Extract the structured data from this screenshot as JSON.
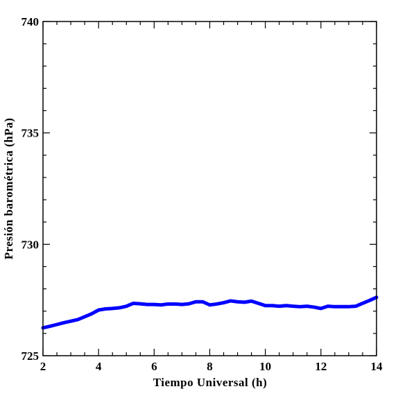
{
  "chart_data": {
    "type": "line",
    "xlabel": "Tiempo Universal (h)",
    "ylabel": "Presión barométrica (hPa)",
    "xlim": [
      2,
      14
    ],
    "ylim": [
      725,
      740
    ],
    "x_ticks": [
      2,
      4,
      6,
      8,
      10,
      12,
      14
    ],
    "y_ticks": [
      725,
      730,
      735,
      740
    ],
    "x_tick_labels": [
      "2",
      "4",
      "6",
      "8",
      "10",
      "12",
      "14"
    ],
    "y_tick_labels": [
      "725",
      "730",
      "735",
      "740"
    ],
    "grid": false,
    "series_color": "#0000ff",
    "series": [
      {
        "x": [
          2.0,
          2.25,
          2.5,
          2.75,
          3.0,
          3.25,
          3.5,
          3.75,
          4.0,
          4.25,
          4.5,
          4.75,
          5.0,
          5.25,
          5.5,
          5.75,
          6.0,
          6.25,
          6.5,
          6.75,
          7.0,
          7.25,
          7.5,
          7.75,
          8.0,
          8.25,
          8.5,
          8.75,
          9.0,
          9.25,
          9.5,
          9.75,
          10.0,
          10.25,
          10.5,
          10.75,
          11.0,
          11.25,
          11.5,
          11.75,
          12.0,
          12.25,
          12.5,
          12.75,
          13.0,
          13.25,
          13.5,
          13.75,
          14.0
        ],
        "y": [
          726.25,
          726.32,
          726.4,
          726.48,
          726.55,
          726.62,
          726.75,
          726.88,
          727.05,
          727.1,
          727.12,
          727.15,
          727.22,
          727.35,
          727.33,
          727.3,
          727.3,
          727.28,
          727.32,
          727.32,
          727.3,
          727.33,
          727.42,
          727.42,
          727.28,
          727.32,
          727.38,
          727.46,
          727.42,
          727.4,
          727.45,
          727.35,
          727.25,
          727.25,
          727.22,
          727.25,
          727.22,
          727.2,
          727.22,
          727.18,
          727.12,
          727.22,
          727.2,
          727.2,
          727.2,
          727.22,
          727.35,
          727.48,
          727.62
        ]
      }
    ]
  }
}
